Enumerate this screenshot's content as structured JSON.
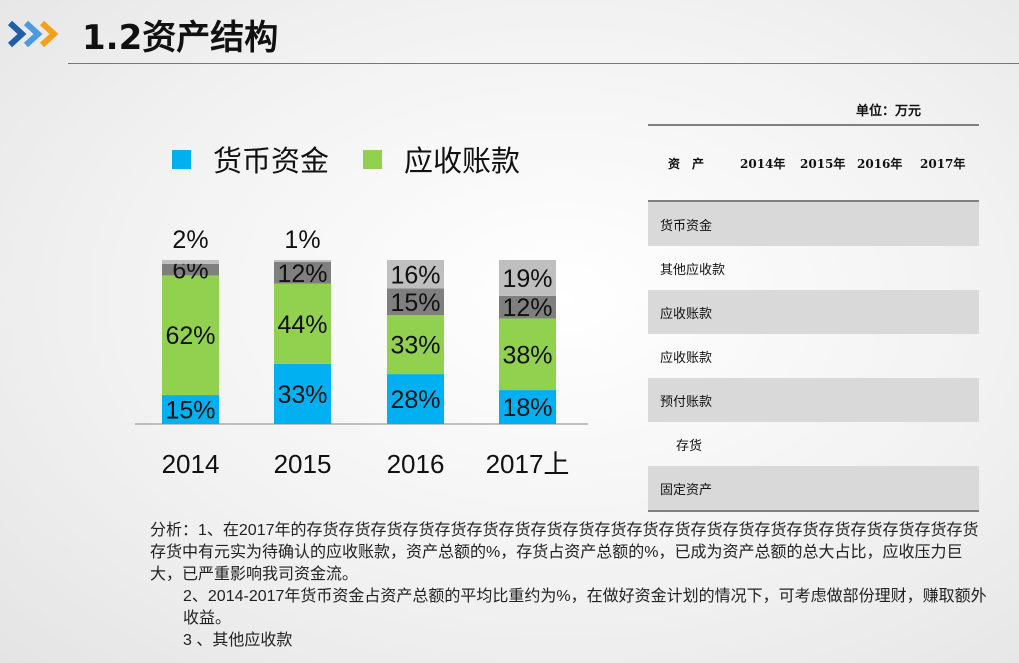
{
  "header": {
    "title": "1.2资产结构",
    "icon": "triple-chevron-right-icon"
  },
  "colors": {
    "blue": "#00b0f0",
    "green": "#92d050",
    "dark_gray": "#7f7f7f",
    "light_gray": "#bfbfbf",
    "chevron_blue_dark": "#1f5fa8",
    "chevron_blue_light": "#4a9be0",
    "chevron_orange": "#f5a01a"
  },
  "chart_data": {
    "type": "bar",
    "stacked": "100%",
    "categories": [
      "2014",
      "2015",
      "2016",
      "2017上"
    ],
    "series": [
      {
        "name": "货币资金",
        "color": "#00b0f0",
        "values": [
          15,
          33,
          28,
          18
        ],
        "labels": [
          "15%",
          "33%",
          "28%",
          "18%"
        ]
      },
      {
        "name": "应收账款",
        "color": "#92d050",
        "values": [
          62,
          44,
          33,
          38
        ],
        "labels": [
          "62%",
          "44%",
          "33%",
          "38%"
        ]
      },
      {
        "color": "#7f7f7f",
        "values": [
          6,
          12,
          15,
          12
        ],
        "labels": [
          "6%",
          "12%",
          "15%",
          "12%"
        ]
      },
      {
        "color": "#bfbfbf",
        "values": [
          2,
          1,
          16,
          19
        ],
        "labels": [
          "2%",
          "1%",
          "16%",
          "19%"
        ]
      }
    ],
    "legend": "top",
    "grid": false
  },
  "table": {
    "unit": "单位：万元",
    "headers": [
      "资　产",
      "2014年",
      "2015年",
      "2016年",
      "2017年"
    ],
    "rows": [
      {
        "label": "货币资金",
        "shaded": true
      },
      {
        "label": "其他应收款",
        "shaded": false
      },
      {
        "label": "应收账款",
        "shaded": true
      },
      {
        "label": "应收账款",
        "shaded": false
      },
      {
        "label": "预付账款",
        "shaded": true
      },
      {
        "label": "存货",
        "shaded": false
      },
      {
        "label": "固定资产",
        "shaded": true
      }
    ]
  },
  "analysis": {
    "p1": "分析：1、在2017年的存货存货存货存货存货存货存货存货存货存货存货存货存货存货存货存货存货存货存货存货存货存货中有元实为待确认的应收账款，资产总额的%，存货占资产总额的%，已成为资产总额的总大占比，应收压力巨大，已严重影响我司资金流。",
    "p2": "2、2014-2017年货币资金占资产总额的平均比重约为%，在做好资金计划的情况下，可考虑做部份理财，赚取额外收益。",
    "p3": "3 、其他应收款"
  }
}
